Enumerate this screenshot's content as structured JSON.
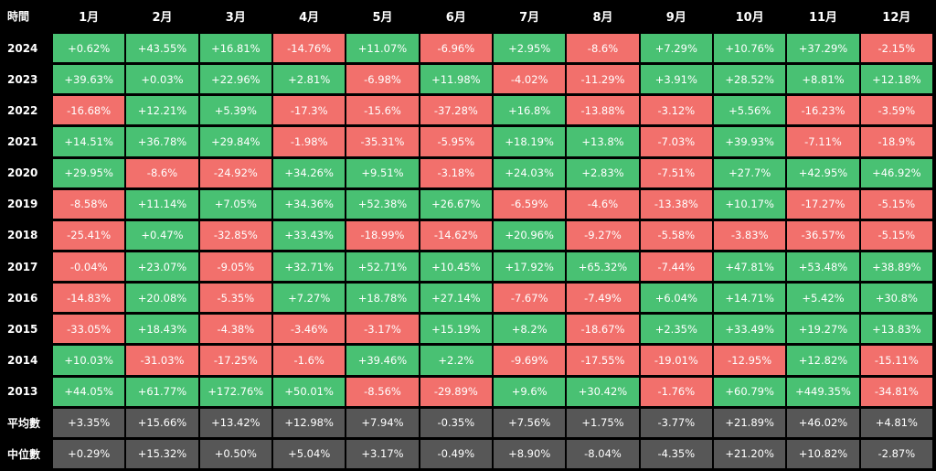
{
  "chart_data": {
    "type": "table",
    "corner_label": "時間",
    "columns": [
      "1月",
      "2月",
      "3月",
      "4月",
      "5月",
      "6月",
      "7月",
      "8月",
      "9月",
      "10月",
      "11月",
      "12月"
    ],
    "rows": [
      {
        "label": "2024",
        "values": [
          "+0.62%",
          "+43.55%",
          "+16.81%",
          "-14.76%",
          "+11.07%",
          "-6.96%",
          "+2.95%",
          "-8.6%",
          "+7.29%",
          "+10.76%",
          "+37.29%",
          "-2.15%"
        ]
      },
      {
        "label": "2023",
        "values": [
          "+39.63%",
          "+0.03%",
          "+22.96%",
          "+2.81%",
          "-6.98%",
          "+11.98%",
          "-4.02%",
          "-11.29%",
          "+3.91%",
          "+28.52%",
          "+8.81%",
          "+12.18%"
        ]
      },
      {
        "label": "2022",
        "values": [
          "-16.68%",
          "+12.21%",
          "+5.39%",
          "-17.3%",
          "-15.6%",
          "-37.28%",
          "+16.8%",
          "-13.88%",
          "-3.12%",
          "+5.56%",
          "-16.23%",
          "-3.59%"
        ]
      },
      {
        "label": "2021",
        "values": [
          "+14.51%",
          "+36.78%",
          "+29.84%",
          "-1.98%",
          "-35.31%",
          "-5.95%",
          "+18.19%",
          "+13.8%",
          "-7.03%",
          "+39.93%",
          "-7.11%",
          "-18.9%"
        ]
      },
      {
        "label": "2020",
        "values": [
          "+29.95%",
          "-8.6%",
          "-24.92%",
          "+34.26%",
          "+9.51%",
          "-3.18%",
          "+24.03%",
          "+2.83%",
          "-7.51%",
          "+27.7%",
          "+42.95%",
          "+46.92%"
        ]
      },
      {
        "label": "2019",
        "values": [
          "-8.58%",
          "+11.14%",
          "+7.05%",
          "+34.36%",
          "+52.38%",
          "+26.67%",
          "-6.59%",
          "-4.6%",
          "-13.38%",
          "+10.17%",
          "-17.27%",
          "-5.15%"
        ]
      },
      {
        "label": "2018",
        "values": [
          "-25.41%",
          "+0.47%",
          "-32.85%",
          "+33.43%",
          "-18.99%",
          "-14.62%",
          "+20.96%",
          "-9.27%",
          "-5.58%",
          "-3.83%",
          "-36.57%",
          "-5.15%"
        ]
      },
      {
        "label": "2017",
        "values": [
          "-0.04%",
          "+23.07%",
          "-9.05%",
          "+32.71%",
          "+52.71%",
          "+10.45%",
          "+17.92%",
          "+65.32%",
          "-7.44%",
          "+47.81%",
          "+53.48%",
          "+38.89%"
        ]
      },
      {
        "label": "2016",
        "values": [
          "-14.83%",
          "+20.08%",
          "-5.35%",
          "+7.27%",
          "+18.78%",
          "+27.14%",
          "-7.67%",
          "-7.49%",
          "+6.04%",
          "+14.71%",
          "+5.42%",
          "+30.8%"
        ]
      },
      {
        "label": "2015",
        "values": [
          "-33.05%",
          "+18.43%",
          "-4.38%",
          "-3.46%",
          "-3.17%",
          "+15.19%",
          "+8.2%",
          "-18.67%",
          "+2.35%",
          "+33.49%",
          "+19.27%",
          "+13.83%"
        ]
      },
      {
        "label": "2014",
        "values": [
          "+10.03%",
          "-31.03%",
          "-17.25%",
          "-1.6%",
          "+39.46%",
          "+2.2%",
          "-9.69%",
          "-17.55%",
          "-19.01%",
          "-12.95%",
          "+12.82%",
          "-15.11%"
        ]
      },
      {
        "label": "2013",
        "values": [
          "+44.05%",
          "+61.77%",
          "+172.76%",
          "+50.01%",
          "-8.56%",
          "-29.89%",
          "+9.6%",
          "+30.42%",
          "-1.76%",
          "+60.79%",
          "+449.35%",
          "-34.81%"
        ]
      },
      {
        "label": "平均數",
        "summary": true,
        "values": [
          "+3.35%",
          "+15.66%",
          "+13.42%",
          "+12.98%",
          "+7.94%",
          "-0.35%",
          "+7.56%",
          "+1.75%",
          "-3.77%",
          "+21.89%",
          "+46.02%",
          "+4.81%"
        ]
      },
      {
        "label": "中位數",
        "summary": true,
        "values": [
          "+0.29%",
          "+15.32%",
          "+0.50%",
          "+5.04%",
          "+3.17%",
          "-0.49%",
          "+8.90%",
          "-8.04%",
          "-4.35%",
          "+21.20%",
          "+10.82%",
          "-2.87%"
        ]
      }
    ],
    "colors": {
      "positive": "#49c173",
      "negative": "#f2706c",
      "summary": "#575757",
      "background": "#000000"
    }
  }
}
